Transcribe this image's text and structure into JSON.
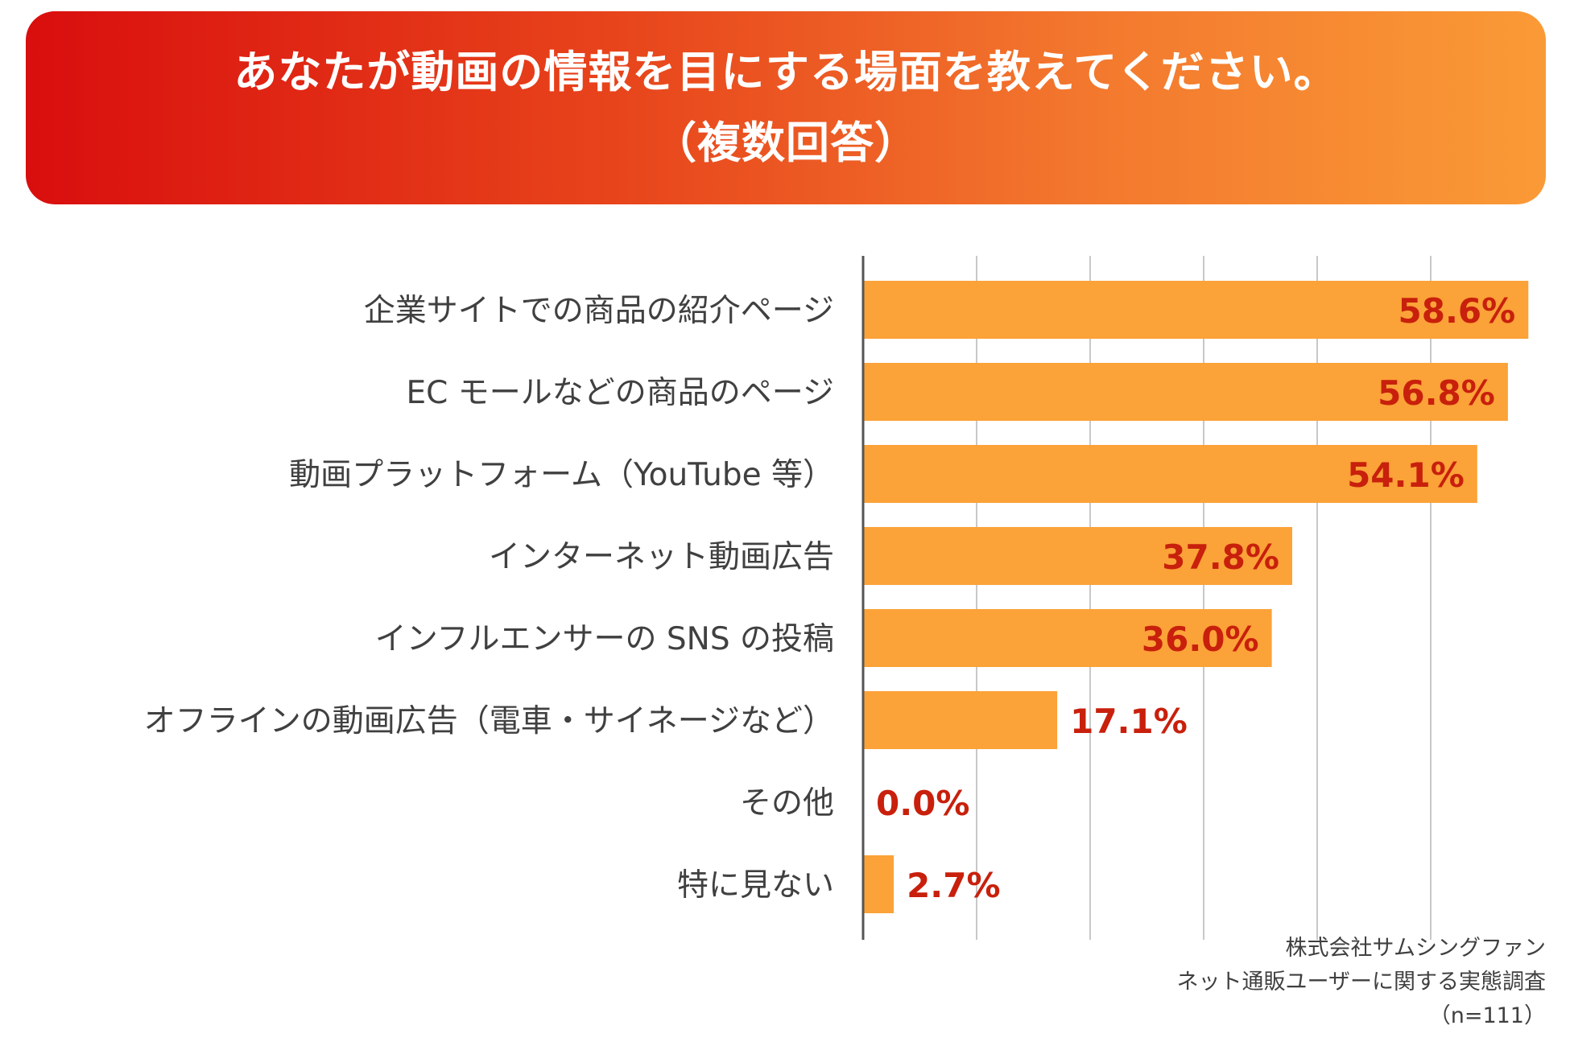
{
  "header": {
    "title_line1": "あなたが動画の情報を目にする場面を教えてください。",
    "title_line2": "（複数回答）"
  },
  "colors": {
    "header_gradient_start": "#d90e0e",
    "header_gradient_end": "#fa9a36",
    "bar": "#fba238",
    "value_text": "#c8200c",
    "label_text": "#404040",
    "grid": "#c8c8c8",
    "axis": "#555555"
  },
  "chart_data": {
    "type": "bar",
    "orientation": "horizontal",
    "title": "あなたが動画の情報を目にする場面を教えてください。（複数回答）",
    "categories": [
      "企業サイトでの商品の紹介ページ",
      "EC モールなどの商品のページ",
      "動画プラットフォーム（YouTube 等）",
      "インターネット動画広告",
      "インフルエンサーの SNS の投稿",
      "オフラインの動画広告（電車・サイネージなど）",
      "その他",
      "特に見ない"
    ],
    "values": [
      58.6,
      56.8,
      54.1,
      37.8,
      36.0,
      17.1,
      0.0,
      2.7
    ],
    "value_labels": [
      "58.6%",
      "56.8%",
      "54.1%",
      "37.8%",
      "36.0%",
      "17.1%",
      "0.0%",
      "2.7%"
    ],
    "unit": "%",
    "xlim": [
      0,
      60
    ],
    "grid_step": 10,
    "grid": true,
    "xlabel": "",
    "ylabel": ""
  },
  "source": {
    "line1": "株式会社サムシングファン",
    "line2": "ネット通販ユーザーに関する実態調査",
    "line3": "（n=111）"
  }
}
